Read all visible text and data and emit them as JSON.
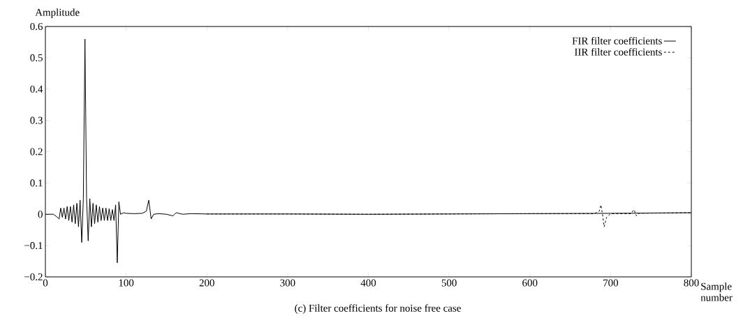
{
  "chart_data": {
    "type": "line",
    "ylabel": "Amplitude",
    "xlabel": "Sample number",
    "annotations": [
      "(c) Filter coefficients for noise free case"
    ],
    "xlim": [
      0,
      800
    ],
    "ylim": [
      -0.2,
      0.6
    ],
    "xticks": [
      0,
      100,
      200,
      300,
      400,
      500,
      600,
      700,
      800
    ],
    "yticks": [
      {
        "value": -0.2,
        "label": "−0.2"
      },
      {
        "value": -0.1,
        "label": "−0.1"
      },
      0,
      0.1,
      0.2,
      0.3,
      0.4,
      0.5,
      0.6
    ],
    "legend": "top right",
    "grid": false,
    "series": [
      {
        "name": "FIR filter coefficients",
        "color": "#000000",
        "line_style": "solid",
        "x": [
          0,
          10,
          15,
          17,
          19,
          21,
          23,
          25,
          27,
          29,
          31,
          33,
          35,
          37,
          39,
          41,
          43,
          45,
          47,
          49,
          51,
          53,
          55,
          57,
          59,
          61,
          63,
          65,
          67,
          69,
          71,
          73,
          75,
          77,
          79,
          81,
          83,
          85,
          87,
          89,
          91,
          93,
          97,
          100,
          110,
          120,
          125,
          128,
          131,
          134,
          140,
          150,
          158,
          162,
          170,
          180,
          200,
          300,
          400,
          500,
          600,
          700,
          800
        ],
        "values": [
          0,
          0,
          -0.01,
          -0.015,
          0.02,
          -0.01,
          0.02,
          -0.015,
          0.025,
          -0.02,
          0.025,
          -0.025,
          0.03,
          -0.03,
          0.035,
          -0.04,
          0.045,
          -0.09,
          0.05,
          0.56,
          0.05,
          -0.085,
          0.05,
          -0.04,
          0.035,
          -0.03,
          0.03,
          -0.025,
          0.025,
          -0.02,
          0.02,
          -0.02,
          0.02,
          -0.02,
          0.018,
          -0.02,
          0.015,
          -0.02,
          0.03,
          -0.155,
          0.04,
          0.0,
          0.005,
          0.003,
          0.002,
          0.003,
          0.01,
          0.045,
          -0.015,
          0,
          0.002,
          0,
          -0.005,
          0.005,
          0,
          0.002,
          0.001,
          0.001,
          0,
          0.001,
          0.002,
          0.003,
          0.005
        ]
      },
      {
        "name": "IIR filter coefficients",
        "color": "#000000",
        "line_style": "dashed",
        "x": [
          200,
          300,
          400,
          500,
          600,
          680,
          686,
          688,
          690,
          692,
          695,
          700,
          725,
          729,
          732,
          735,
          760,
          800
        ],
        "values": [
          0.001,
          0.001,
          0,
          0.001,
          0.002,
          0.002,
          0.01,
          0.03,
          0.0,
          -0.04,
          -0.01,
          0.002,
          0.002,
          0.015,
          -0.005,
          0.003,
          0.004,
          0.005
        ]
      }
    ]
  }
}
